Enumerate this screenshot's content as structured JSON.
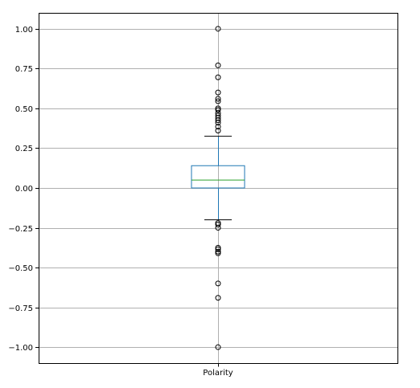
{
  "chart_data": {
    "type": "box",
    "category": "Polarity",
    "ylim": [
      -1.1,
      1.1
    ],
    "yticks": [
      {
        "value": 1.0,
        "label": "1.00"
      },
      {
        "value": 0.75,
        "label": "0.75"
      },
      {
        "value": 0.5,
        "label": "0.50"
      },
      {
        "value": 0.25,
        "label": "0.25"
      },
      {
        "value": 0.0,
        "label": "0.00"
      },
      {
        "value": -0.25,
        "label": "−0.25"
      },
      {
        "value": -0.5,
        "label": "−0.50"
      },
      {
        "value": -0.75,
        "label": "−0.75"
      },
      {
        "value": -1.0,
        "label": "−1.00"
      }
    ],
    "grid": true,
    "box": {
      "q1": 0.0,
      "median": 0.05,
      "q3": 0.14,
      "whisker_low": -0.2,
      "whisker_high": 0.325
    },
    "outliers": [
      1.0,
      0.77,
      0.695,
      0.6,
      0.56,
      0.545,
      0.5,
      0.49,
      0.47,
      0.455,
      0.44,
      0.425,
      0.41,
      0.385,
      0.36,
      -0.22,
      -0.23,
      -0.25,
      -0.375,
      -0.385,
      -0.4,
      -0.41,
      -0.6,
      -0.69,
      -1.0
    ],
    "colors": {
      "box": "#1f77b4",
      "median": "#2ca02c",
      "whisker": "#1f77b4",
      "cap": "#000000",
      "outlier": "#000000",
      "grid": "#b0b0b0"
    }
  }
}
